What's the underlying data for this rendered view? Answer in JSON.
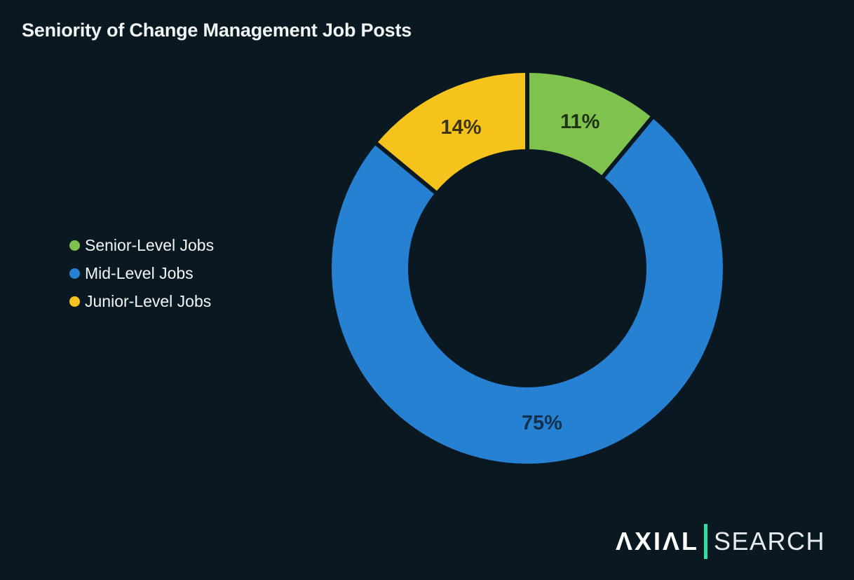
{
  "page": {
    "background_color": "#0a1822",
    "text_color": "#f2f5f6"
  },
  "header": {
    "title": "Seniority of Change Management Job Posts"
  },
  "legend": {
    "position": "left",
    "items": [
      {
        "label": "Senior-Level Jobs",
        "color": "#7fc24e"
      },
      {
        "label": "Mid-Level Jobs",
        "color": "#2681d2"
      },
      {
        "label": "Junior-Level Jobs",
        "color": "#f6c31d"
      }
    ]
  },
  "chart_data": {
    "type": "pie",
    "subtype": "donut",
    "title": "Seniority of Change Management Job Posts",
    "categories": [
      "Senior-Level Jobs",
      "Mid-Level Jobs",
      "Junior-Level Jobs"
    ],
    "values": [
      11,
      75,
      14
    ],
    "unit": "%",
    "slice_labels": [
      "11%",
      "75%",
      "14%"
    ],
    "colors": [
      "#7fc24e",
      "#2681d2",
      "#f6c31d"
    ],
    "slice_label_colors": [
      "#1f3314",
      "#10304e",
      "#3d3408"
    ],
    "start_angle_deg": 0,
    "direction": "clockwise",
    "inner_radius_ratio": 0.61,
    "gap_color": "#0a1822",
    "legend_position": "left",
    "grid": false
  },
  "branding": {
    "logo_text": "AXIAL SEARCH",
    "wordmark_left": "ΛXIΛL",
    "wordmark_right": "SEARCH",
    "divider_color": "#2ee0a3"
  }
}
